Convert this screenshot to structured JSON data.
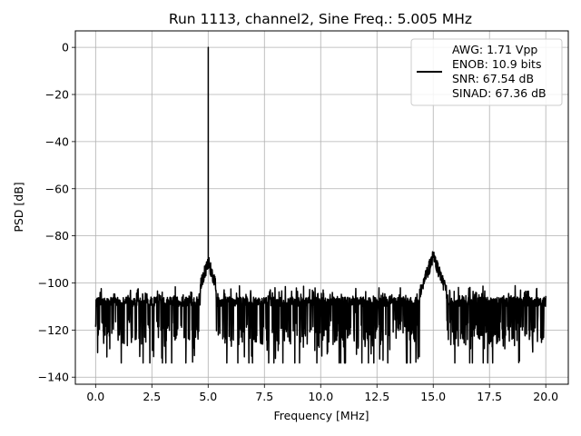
{
  "chart_data": {
    "type": "line",
    "title": "Run 1113, channel2, Sine Freq.: 5.005 MHz",
    "xlabel": "Frequency [MHz]",
    "ylabel": "PSD [dB]",
    "xlim": [
      -0.9,
      21.0
    ],
    "ylim": [
      -143,
      7
    ],
    "xticks": [
      0.0,
      2.5,
      5.0,
      7.5,
      10.0,
      12.5,
      15.0,
      17.5,
      20.0
    ],
    "xtick_labels": [
      "0.0",
      "2.5",
      "5.0",
      "7.5",
      "10.0",
      "12.5",
      "15.0",
      "17.5",
      "20.0"
    ],
    "yticks": [
      0,
      -20,
      -40,
      -60,
      -80,
      -100,
      -120,
      -140
    ],
    "ytick_labels": [
      "0",
      "−20",
      "−40",
      "−60",
      "−80",
      "−100",
      "−120",
      "−140"
    ],
    "grid": true,
    "legend_position": "top-right",
    "line_color": "#000000",
    "series": [
      {
        "name": "AWG: 1.71 Vpp\nENOB: 10.9 bits\nSNR: 67.54 dB\nSINAD: 67.36 dB",
        "x_range": [
          0.0,
          20.0
        ],
        "noise_floor_db": -106,
        "noise_min_db": -134,
        "peaks": [
          {
            "x": 5.005,
            "y": 0.0
          },
          {
            "x": 15.0,
            "y": -85
          }
        ]
      }
    ]
  },
  "legend_lines": [
    "AWG: 1.71 Vpp",
    "ENOB: 10.9 bits",
    "SNR: 67.54 dB",
    "SINAD: 67.36 dB"
  ]
}
